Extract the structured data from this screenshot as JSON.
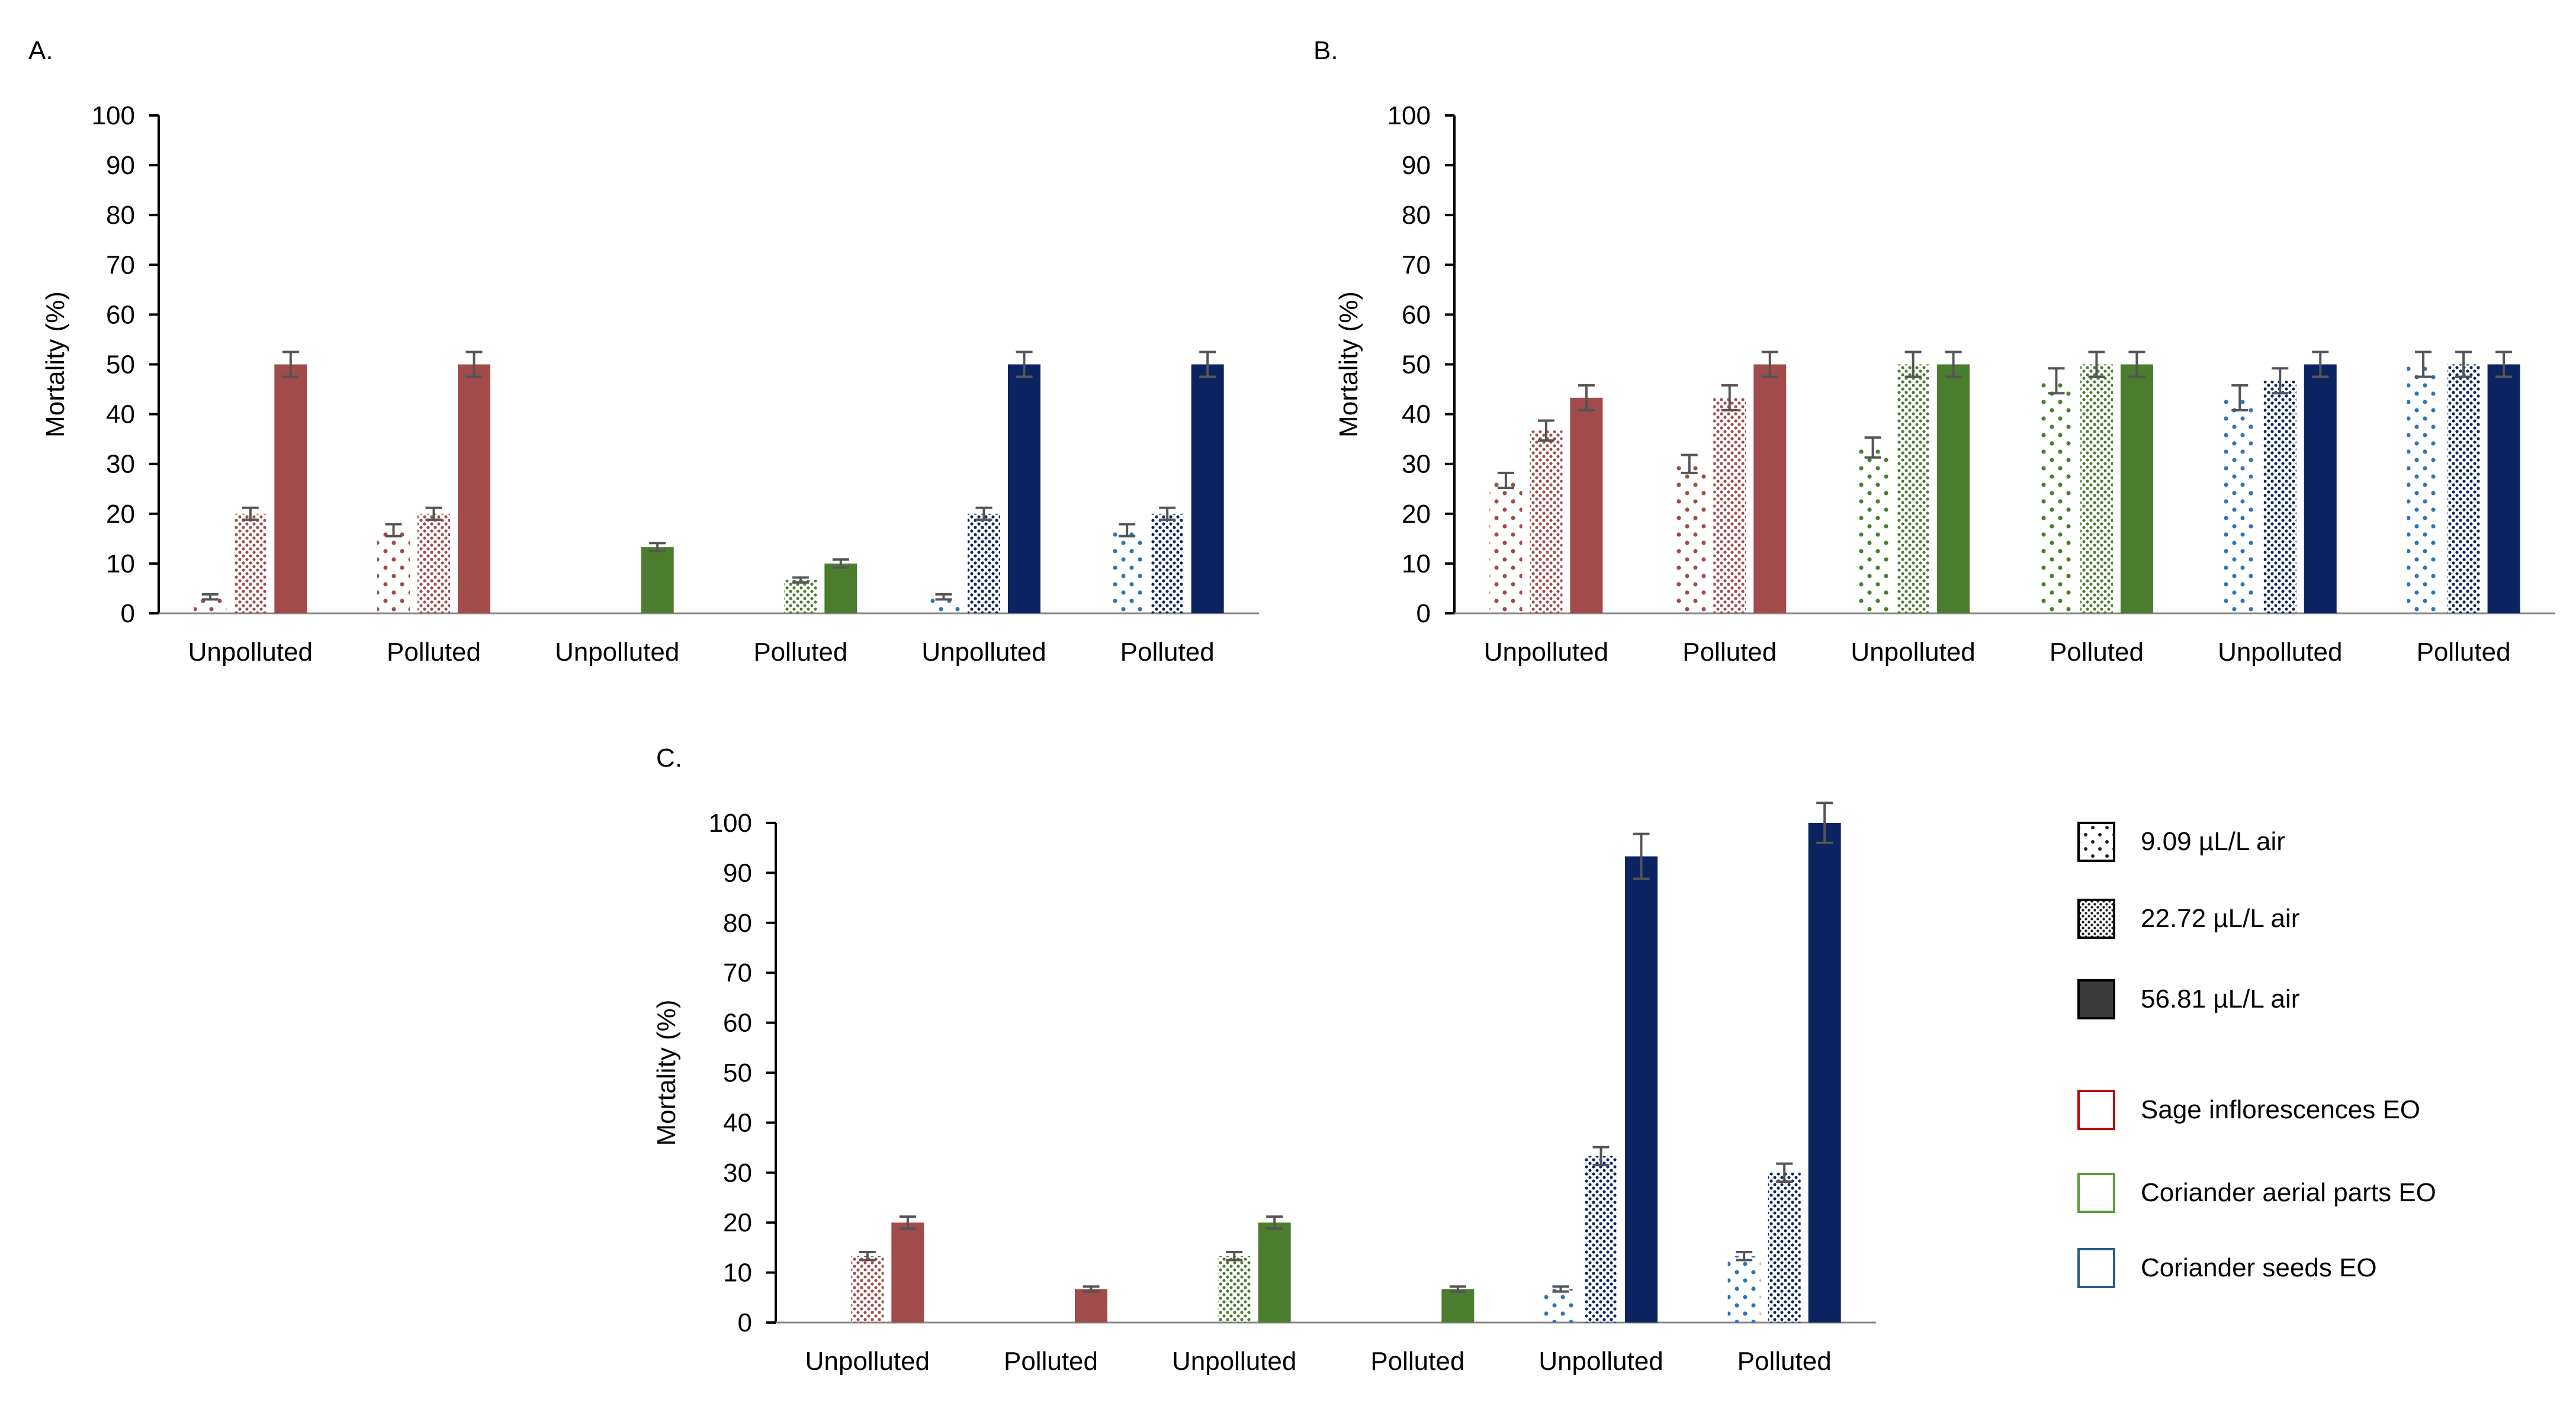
{
  "colors": {
    "sage": "#A24B4B",
    "coriander_aerial": "#4A7D2E",
    "coriander_seeds": "#0C2361",
    "sage_outline": "#C00000",
    "coriander_aerial_outline": "#5B9B3A",
    "coriander_seeds_outline": "#2A5A8A",
    "axis": "#000000",
    "error": "#555555",
    "dark_swatch": "#3A3A3A",
    "light_dot": "#2E75B6"
  },
  "legend": {
    "concentrations": [
      "9.09 µL/L air",
      "22.72 µL/L air",
      "56.81 µL/L air"
    ],
    "oils": [
      "Sage inflorescences EO",
      "Coriander aerial parts EO",
      "Coriander seeds EO"
    ]
  },
  "chart_data": [
    {
      "panel": "A.",
      "type": "bar",
      "ylabel": "Mortality (%)",
      "ylim": [
        0,
        100
      ],
      "yticks": [
        0,
        10,
        20,
        30,
        40,
        50,
        60,
        70,
        80,
        90,
        100
      ],
      "concentrations": [
        "9.09 µL/L air",
        "22.72 µL/L air",
        "56.81 µL/L air"
      ],
      "groups": [
        {
          "label": "Unpolluted",
          "oil": "sage",
          "values": [
            3.3,
            20,
            50
          ],
          "errors": [
            0.5,
            1.2,
            2.5
          ]
        },
        {
          "label": "Polluted",
          "oil": "sage",
          "values": [
            16.7,
            20,
            50
          ],
          "errors": [
            1.2,
            1.2,
            2.5
          ]
        },
        {
          "label": "Unpolluted",
          "oil": "coriander_aerial",
          "values": [
            0,
            0,
            13.3
          ],
          "errors": [
            0,
            0,
            0.8
          ]
        },
        {
          "label": "Polluted",
          "oil": "coriander_aerial",
          "values": [
            0,
            6.7,
            10
          ],
          "errors": [
            0,
            0.5,
            0.8
          ]
        },
        {
          "label": "Unpolluted",
          "oil": "coriander_seeds",
          "values": [
            3.3,
            20,
            50
          ],
          "errors": [
            0.5,
            1.2,
            2.5
          ]
        },
        {
          "label": "Polluted",
          "oil": "coriander_seeds",
          "values": [
            16.7,
            20,
            50
          ],
          "errors": [
            1.2,
            1.2,
            2.5
          ]
        }
      ]
    },
    {
      "panel": "B.",
      "type": "bar",
      "ylabel": "Mortality (%)",
      "ylim": [
        0,
        100
      ],
      "yticks": [
        0,
        10,
        20,
        30,
        40,
        50,
        60,
        70,
        80,
        90,
        100
      ],
      "concentrations": [
        "9.09 µL/L air",
        "22.72 µL/L air",
        "56.81 µL/L air"
      ],
      "groups": [
        {
          "label": "Unpolluted",
          "oil": "sage",
          "values": [
            26.7,
            36.7,
            43.3
          ],
          "errors": [
            1.5,
            2,
            2.5
          ]
        },
        {
          "label": "Polluted",
          "oil": "sage",
          "values": [
            30,
            43.3,
            50
          ],
          "errors": [
            1.8,
            2.5,
            2.5
          ]
        },
        {
          "label": "Unpolluted",
          "oil": "coriander_aerial",
          "values": [
            33.3,
            50,
            50
          ],
          "errors": [
            2,
            2.5,
            2.5
          ]
        },
        {
          "label": "Polluted",
          "oil": "coriander_aerial",
          "values": [
            46.7,
            50,
            50
          ],
          "errors": [
            2.5,
            2.5,
            2.5
          ]
        },
        {
          "label": "Unpolluted",
          "oil": "coriander_seeds",
          "values": [
            43.3,
            46.7,
            50
          ],
          "errors": [
            2.5,
            2.5,
            2.5
          ]
        },
        {
          "label": "Polluted",
          "oil": "coriander_seeds",
          "values": [
            50,
            50,
            50
          ],
          "errors": [
            2.5,
            2.5,
            2.5
          ]
        }
      ]
    },
    {
      "panel": "C.",
      "type": "bar",
      "ylabel": "Mortality (%)",
      "ylim": [
        0,
        100
      ],
      "yticks": [
        0,
        10,
        20,
        30,
        40,
        50,
        60,
        70,
        80,
        90,
        100
      ],
      "concentrations": [
        "9.09 µL/L air",
        "22.72 µL/L air",
        "56.81 µL/L air"
      ],
      "groups": [
        {
          "label": "Unpolluted",
          "oil": "sage",
          "values": [
            0,
            13.3,
            20
          ],
          "errors": [
            0,
            0.8,
            1.2
          ]
        },
        {
          "label": "Polluted",
          "oil": "sage",
          "values": [
            0,
            0,
            6.7
          ],
          "errors": [
            0,
            0,
            0.5
          ]
        },
        {
          "label": "Unpolluted",
          "oil": "coriander_aerial",
          "values": [
            0,
            13.3,
            20
          ],
          "errors": [
            0,
            0.8,
            1.2
          ]
        },
        {
          "label": "Polluted",
          "oil": "coriander_aerial",
          "values": [
            0,
            0,
            6.7
          ],
          "errors": [
            0,
            0,
            0.5
          ]
        },
        {
          "label": "Unpolluted",
          "oil": "coriander_seeds",
          "values": [
            6.7,
            33.3,
            93.3
          ],
          "errors": [
            0.5,
            1.8,
            4.5
          ]
        },
        {
          "label": "Polluted",
          "oil": "coriander_seeds",
          "values": [
            13.3,
            30,
            100
          ],
          "errors": [
            0.8,
            1.8,
            4
          ]
        }
      ]
    }
  ]
}
